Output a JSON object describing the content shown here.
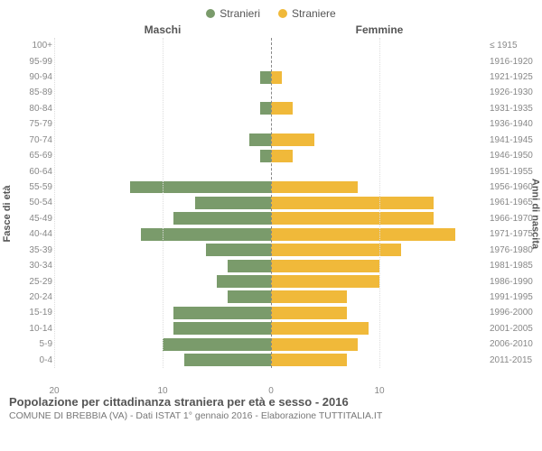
{
  "legend": {
    "male": {
      "label": "Stranieri",
      "color": "#7a9b6b"
    },
    "female": {
      "label": "Straniere",
      "color": "#f0b93a"
    }
  },
  "headers": {
    "male": "Maschi",
    "female": "Femmine"
  },
  "axes": {
    "left_label": "Fasce di età",
    "right_label": "Anni di nascita",
    "x_max": 20,
    "x_ticks_left": [
      20,
      10,
      0
    ],
    "x_ticks_right": [
      10
    ],
    "grid_color": "#dddddd",
    "center_line_color": "#888888"
  },
  "chart": {
    "type": "population-pyramid",
    "background_color": "#ffffff",
    "bar_gap_ratio": 0.2,
    "age_bands": [
      "100+",
      "95-99",
      "90-94",
      "85-89",
      "80-84",
      "75-79",
      "70-74",
      "65-69",
      "60-64",
      "55-59",
      "50-54",
      "45-49",
      "40-44",
      "35-39",
      "30-34",
      "25-29",
      "20-24",
      "15-19",
      "10-14",
      "5-9",
      "0-4"
    ],
    "birth_years": [
      "≤ 1915",
      "1916-1920",
      "1921-1925",
      "1926-1930",
      "1931-1935",
      "1936-1940",
      "1941-1945",
      "1946-1950",
      "1951-1955",
      "1956-1960",
      "1961-1965",
      "1966-1970",
      "1971-1975",
      "1976-1980",
      "1981-1985",
      "1986-1990",
      "1991-1995",
      "1996-2000",
      "2001-2005",
      "2006-2010",
      "2011-2015"
    ],
    "male": [
      0,
      0,
      1,
      0,
      1,
      0,
      2,
      1,
      0,
      13,
      7,
      9,
      12,
      6,
      4,
      5,
      4,
      9,
      9,
      10,
      8
    ],
    "female": [
      0,
      0,
      1,
      0,
      2,
      0,
      4,
      2,
      0,
      8,
      15,
      15,
      17,
      12,
      10,
      10,
      7,
      7,
      9,
      8,
      7
    ]
  },
  "footer": {
    "title": "Popolazione per cittadinanza straniera per età e sesso - 2016",
    "subtitle": "COMUNE DI BREBBIA (VA) - Dati ISTAT 1° gennaio 2016 - Elaborazione TUTTITALIA.IT"
  }
}
